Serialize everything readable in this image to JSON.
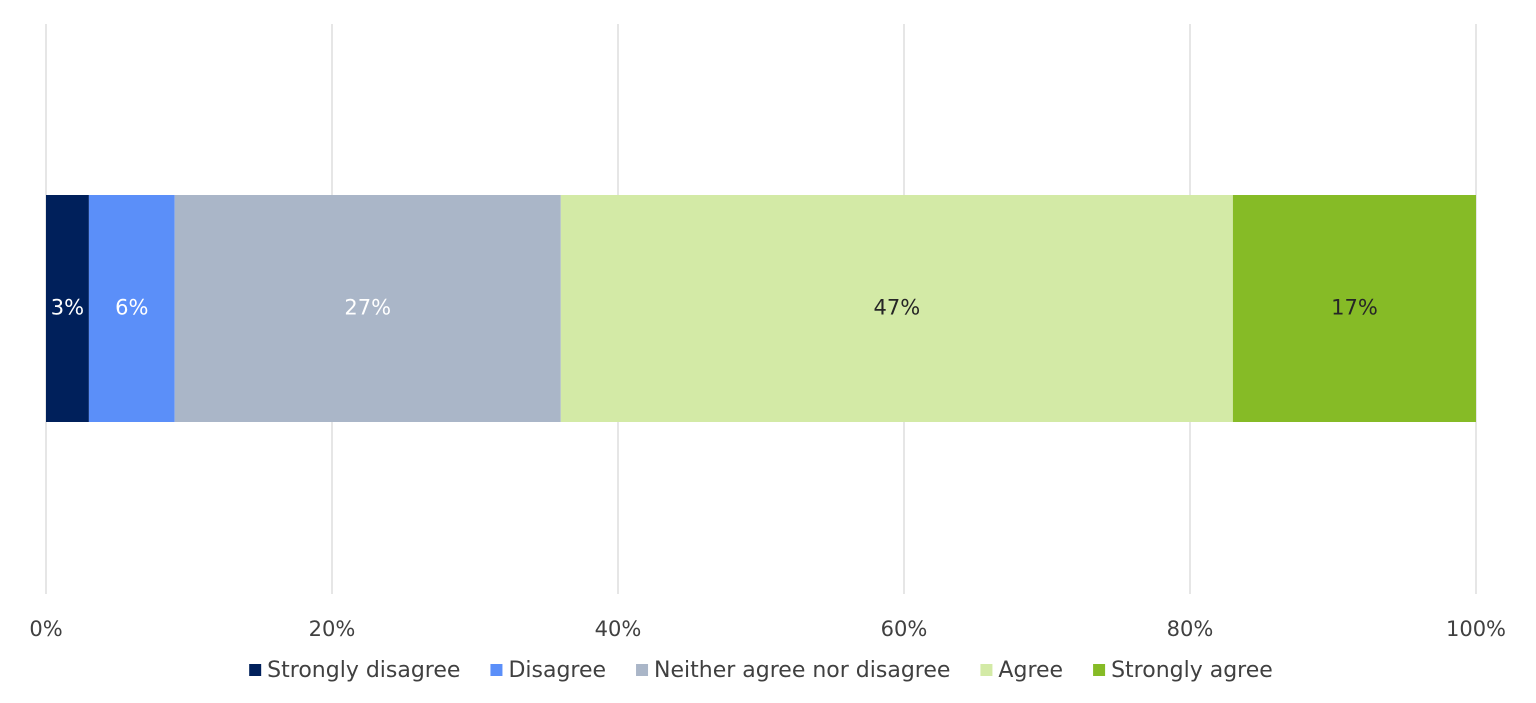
{
  "chart_data": {
    "type": "bar",
    "orientation": "horizontal",
    "stacked": true,
    "categories": [
      ""
    ],
    "series": [
      {
        "name": "Strongly disagree",
        "values": [
          3
        ],
        "label": "3%",
        "color": "#00205b",
        "label_color": "#ffffff"
      },
      {
        "name": "Disagree",
        "values": [
          6
        ],
        "label": "6%",
        "color": "#5b8ff9",
        "label_color": "#ffffff"
      },
      {
        "name": "Neither agree nor disagree",
        "values": [
          27
        ],
        "label": "27%",
        "color": "#aab6c8",
        "label_color": "#ffffff"
      },
      {
        "name": "Agree",
        "values": [
          47
        ],
        "label": "47%",
        "color": "#d3eaa6",
        "label_color": "#262626"
      },
      {
        "name": "Strongly agree",
        "values": [
          17
        ],
        "label": "17%",
        "color": "#86bb26",
        "label_color": "#262626"
      }
    ],
    "x_ticks": [
      "0%",
      "20%",
      "40%",
      "60%",
      "80%",
      "100%"
    ],
    "xlim": [
      0,
      100
    ],
    "grid": "vertical",
    "legend_position": "bottom",
    "title": "",
    "xlabel": "",
    "ylabel": ""
  }
}
